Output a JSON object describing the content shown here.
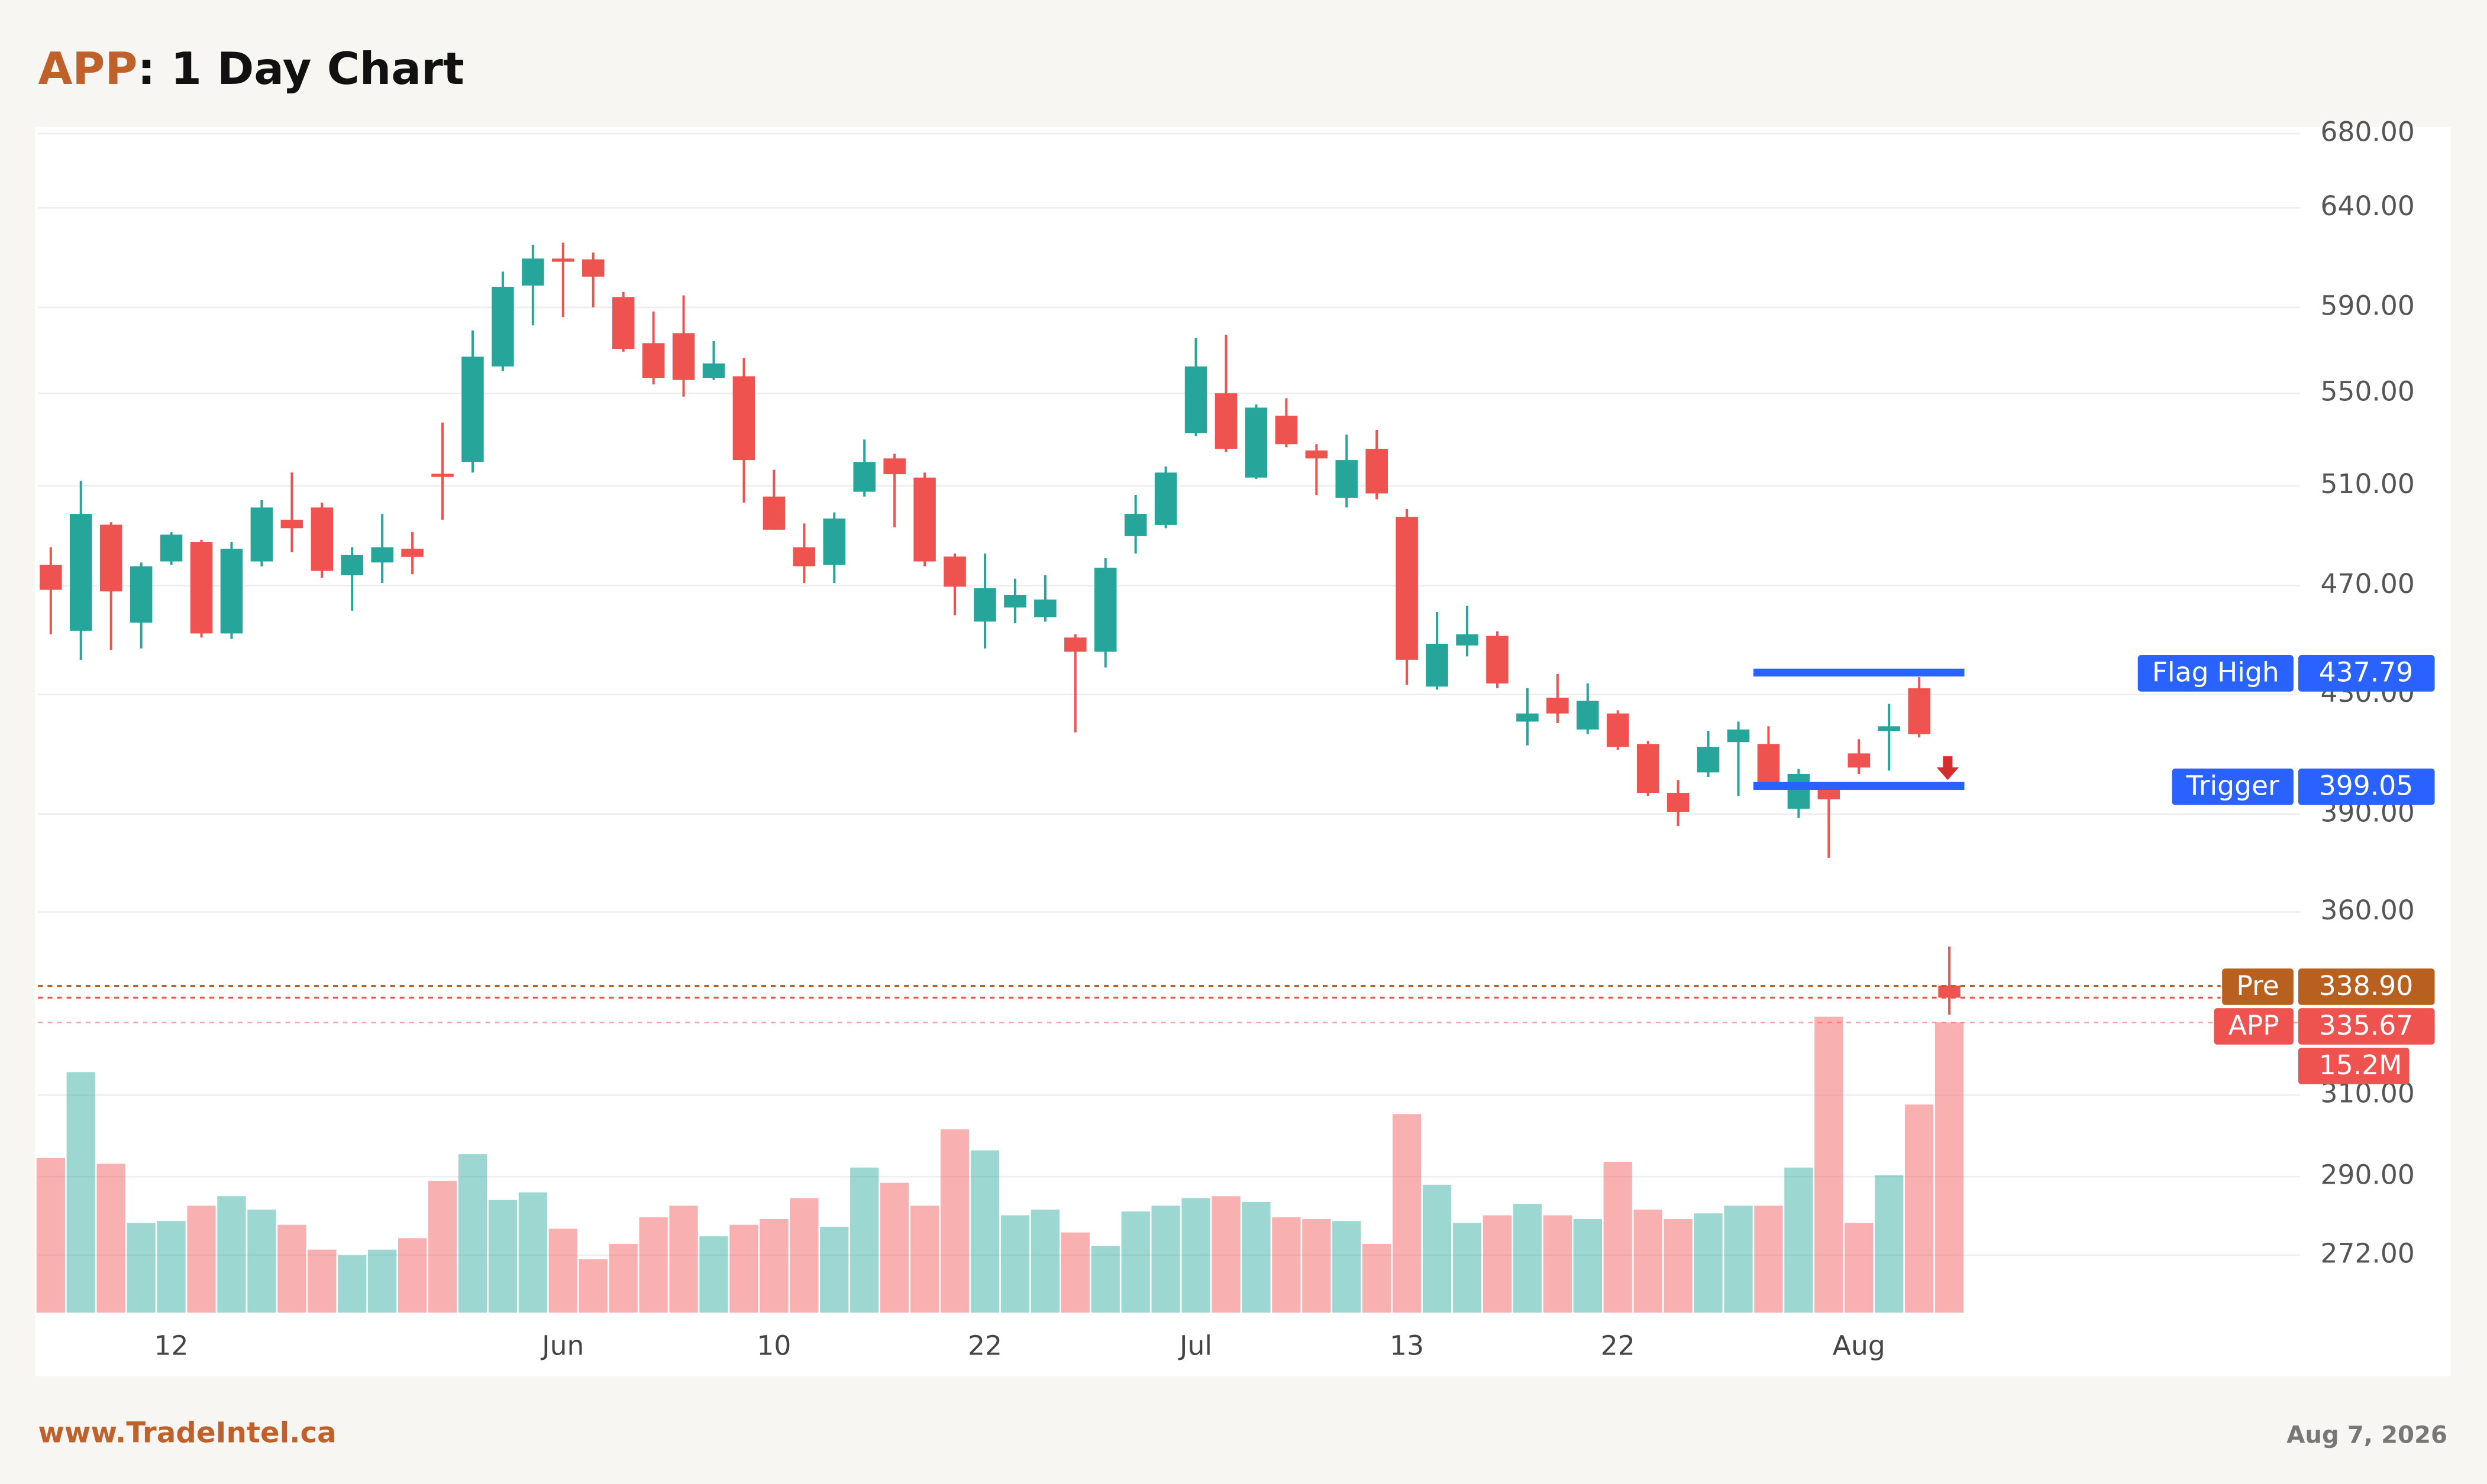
{
  "chart_data": {
    "type": "candlestick",
    "symbol": "APP",
    "title": ": 1 Day Chart",
    "footer_left": "www.TradeIntel.ca",
    "footer_right": "Aug 7, 2026",
    "categories": [
      null,
      null,
      null,
      null,
      "12",
      null,
      null,
      null,
      null,
      null,
      null,
      null,
      null,
      null,
      null,
      null,
      null,
      "Jun",
      null,
      null,
      null,
      null,
      null,
      null,
      "10",
      null,
      null,
      null,
      null,
      null,
      null,
      "22",
      null,
      null,
      null,
      null,
      null,
      null,
      "Jul",
      null,
      null,
      null,
      null,
      null,
      null,
      "13",
      null,
      null,
      null,
      null,
      null,
      null,
      "22",
      null,
      null,
      null,
      null,
      null,
      null,
      null,
      "Aug",
      null,
      null,
      null
    ],
    "open": [
      478,
      453,
      494,
      456,
      479.4,
      487,
      452,
      479.4,
      496,
      501,
      474,
      479,
      484.4,
      515,
      520,
      562.2,
      600.6,
      614,
      613.6,
      595,
      573,
      577.7,
      557,
      557.7,
      505.5,
      485,
      478,
      507.5,
      521.5,
      513.4,
      481.3,
      456.4,
      461.7,
      458,
      450.5,
      445.3,
      489.4,
      493.9,
      532.4,
      550,
      513.4,
      540,
      524.9,
      505,
      525.6,
      497.2,
      432.8,
      447.6,
      451.1,
      420.6,
      428.9,
      417.9,
      423.4,
      413,
      396.8,
      403.5,
      413.6,
      413,
      391.7,
      397.8,
      409.8,
      417.4,
      432.2,
      339
    ],
    "high": [
      485,
      512,
      495,
      479,
      491,
      488,
      487,
      504,
      515.5,
      503,
      485,
      498.4,
      491,
      537,
      579,
      607.5,
      621,
      622,
      617,
      597.5,
      588,
      595.8,
      574,
      566,
      516.7,
      494.5,
      499,
      529.6,
      523.5,
      515.5,
      482.5,
      482.5,
      472.7,
      474,
      451.7,
      480.7,
      506.2,
      518.1,
      575.4,
      576.9,
      545,
      547.8,
      527.6,
      531.7,
      533.8,
      500.4,
      460,
      462.3,
      452.8,
      432.2,
      437.3,
      433.9,
      424.5,
      414,
      401,
      417.4,
      420.6,
      419,
      404.6,
      398.9,
      414.6,
      426.7,
      436.2,
      350
    ],
    "low": [
      451.7,
      442.4,
      446,
      446.5,
      478,
      450.5,
      450,
      477.5,
      483,
      473,
      460.5,
      471,
      474.4,
      496,
      515.5,
      560,
      581.4,
      585.3,
      590,
      569,
      554,
      548.5,
      556,
      503,
      492,
      471,
      471,
      505.5,
      493,
      477.5,
      458.8,
      446.5,
      455.8,
      456.4,
      416.9,
      439.6,
      482.5,
      492.6,
      531.1,
      524.2,
      512.8,
      526.3,
      506.2,
      501,
      504.4,
      433.4,
      431.7,
      443.6,
      432.2,
      412.5,
      420.1,
      416.3,
      411,
      395.8,
      386.2,
      402,
      395.8,
      397.8,
      388.7,
      376.3,
      403,
      404.1,
      415.2,
      331
    ],
    "close": [
      468.4,
      498.4,
      467.8,
      477.5,
      490,
      452,
      484.4,
      501,
      492.6,
      475.7,
      481.9,
      485,
      481.2,
      514,
      566.7,
      600,
      614,
      613,
      605,
      570.3,
      557,
      556,
      563.6,
      520.8,
      492,
      477.5,
      496.5,
      520,
      514.8,
      479.4,
      469.6,
      469,
      466.5,
      464.7,
      445.3,
      476.9,
      498.4,
      515.5,
      562.2,
      525.6,
      543.6,
      527.6,
      521.5,
      520.8,
      506.8,
      442.4,
      448.2,
      451.7,
      433.9,
      423.4,
      423.4,
      427.8,
      412,
      396.8,
      390.7,
      412,
      417.9,
      399.9,
      403,
      394.7,
      405.1,
      419,
      416.3,
      335.67
    ],
    "volume": [
      8.1,
      12.6,
      7.8,
      4.7,
      4.8,
      5.6,
      6.1,
      5.4,
      4.6,
      3.3,
      3.0,
      3.3,
      3.9,
      6.9,
      8.3,
      5.9,
      6.3,
      4.4,
      2.8,
      3.6,
      5.0,
      5.6,
      4.0,
      4.6,
      4.9,
      6.0,
      4.5,
      7.6,
      6.8,
      5.6,
      9.6,
      8.5,
      5.1,
      5.4,
      4.2,
      3.5,
      5.3,
      5.6,
      6.0,
      6.1,
      5.8,
      5.0,
      4.9,
      4.8,
      3.6,
      10.4,
      6.7,
      4.7,
      5.1,
      5.7,
      5.1,
      4.9,
      7.9,
      5.4,
      4.9,
      5.2,
      5.6,
      5.6,
      7.6,
      15.5,
      4.7,
      7.2,
      10.9,
      15.2
    ],
    "up_color": "#26a69a",
    "down_color": "#ef5350",
    "ylog": true,
    "ylim": [
      259.5,
      683.7
    ],
    "yticks": [
      {
        "value": 680,
        "label": "680.00"
      },
      {
        "value": 640,
        "label": "640.00"
      },
      {
        "value": 590,
        "label": "590.00"
      },
      {
        "value": 550,
        "label": "550.00"
      },
      {
        "value": 510,
        "label": "510.00"
      },
      {
        "value": 470,
        "label": "470.00"
      },
      {
        "value": 430,
        "label": "430.00"
      },
      {
        "value": 390,
        "label": "390.00"
      },
      {
        "value": 360,
        "label": "360.00"
      },
      {
        "value": 310,
        "label": "310.00"
      },
      {
        "value": 290,
        "label": "290.00"
      },
      {
        "value": 272,
        "label": "272.00"
      }
    ],
    "volume_ylim": [
      0,
      62.1
    ],
    "grid": true,
    "levels": [
      {
        "name": "Flag High",
        "value": 437.79,
        "color": "#2962ff",
        "style": "solid"
      },
      {
        "name": "Trigger",
        "value": 399.05,
        "color": "#2962ff",
        "style": "solid"
      },
      {
        "name": "Pre",
        "value": 338.9,
        "value_label": "338.90",
        "color": "#b8601f",
        "style": "dotted"
      },
      {
        "name": "APP",
        "value": 335.67,
        "color": "#ef5350",
        "style": "dotted"
      }
    ],
    "volume_label": {
      "value": 15.2,
      "label": "15.2M",
      "color": "#ef5350"
    }
  }
}
